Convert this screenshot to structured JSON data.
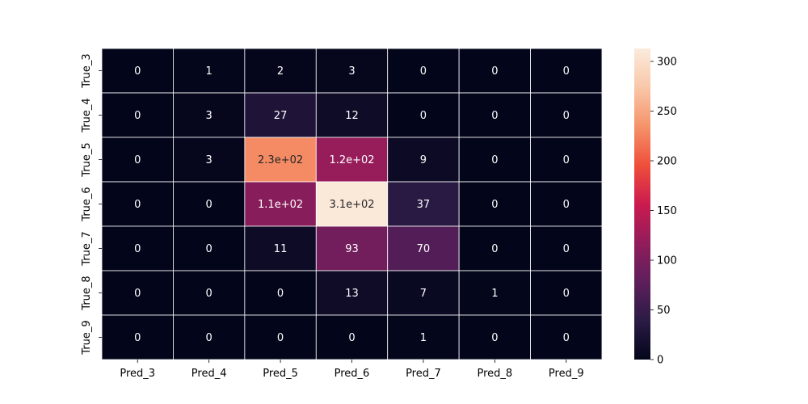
{
  "chart_data": {
    "type": "heatmap",
    "title": "",
    "xlabel": "",
    "ylabel": "",
    "x_categories": [
      "Pred_3",
      "Pred_4",
      "Pred_5",
      "Pred_6",
      "Pred_7",
      "Pred_8",
      "Pred_9"
    ],
    "y_categories": [
      "True_3",
      "True_4",
      "True_5",
      "True_6",
      "True_7",
      "True_8",
      "True_9"
    ],
    "values": [
      [
        0,
        1,
        2,
        3,
        0,
        0,
        0
      ],
      [
        0,
        3,
        27,
        12,
        0,
        0,
        0
      ],
      [
        0,
        3,
        230,
        120,
        9,
        0,
        0
      ],
      [
        0,
        0,
        110,
        310,
        37,
        0,
        0
      ],
      [
        0,
        0,
        11,
        93,
        70,
        0,
        0
      ],
      [
        0,
        0,
        0,
        13,
        7,
        1,
        0
      ],
      [
        0,
        0,
        0,
        0,
        1,
        0,
        0
      ]
    ],
    "annotations": [
      [
        "0",
        "1",
        "2",
        "3",
        "0",
        "0",
        "0"
      ],
      [
        "0",
        "3",
        "27",
        "12",
        "0",
        "0",
        "0"
      ],
      [
        "0",
        "3",
        "2.3e+02",
        "1.2e+02",
        "9",
        "0",
        "0"
      ],
      [
        "0",
        "0",
        "1.1e+02",
        "3.1e+02",
        "37",
        "0",
        "0"
      ],
      [
        "0",
        "0",
        "11",
        "93",
        "70",
        "0",
        "0"
      ],
      [
        "0",
        "0",
        "0",
        "13",
        "7",
        "1",
        "0"
      ],
      [
        "0",
        "0",
        "0",
        "0",
        "1",
        "0",
        "0"
      ]
    ],
    "colorbar": {
      "range": [
        0,
        313
      ],
      "ticks": [
        0,
        50,
        100,
        150,
        200,
        250,
        300
      ],
      "colormap": "rocket",
      "stops": [
        "#03051a",
        "#2b1b45",
        "#5e1f5c",
        "#921c5b",
        "#cb1b4f",
        "#ef4f3a",
        "#f5936a",
        "#f9c7a8",
        "#faebdd"
      ]
    },
    "grid": false,
    "cell_border_color": "#ffffff"
  }
}
